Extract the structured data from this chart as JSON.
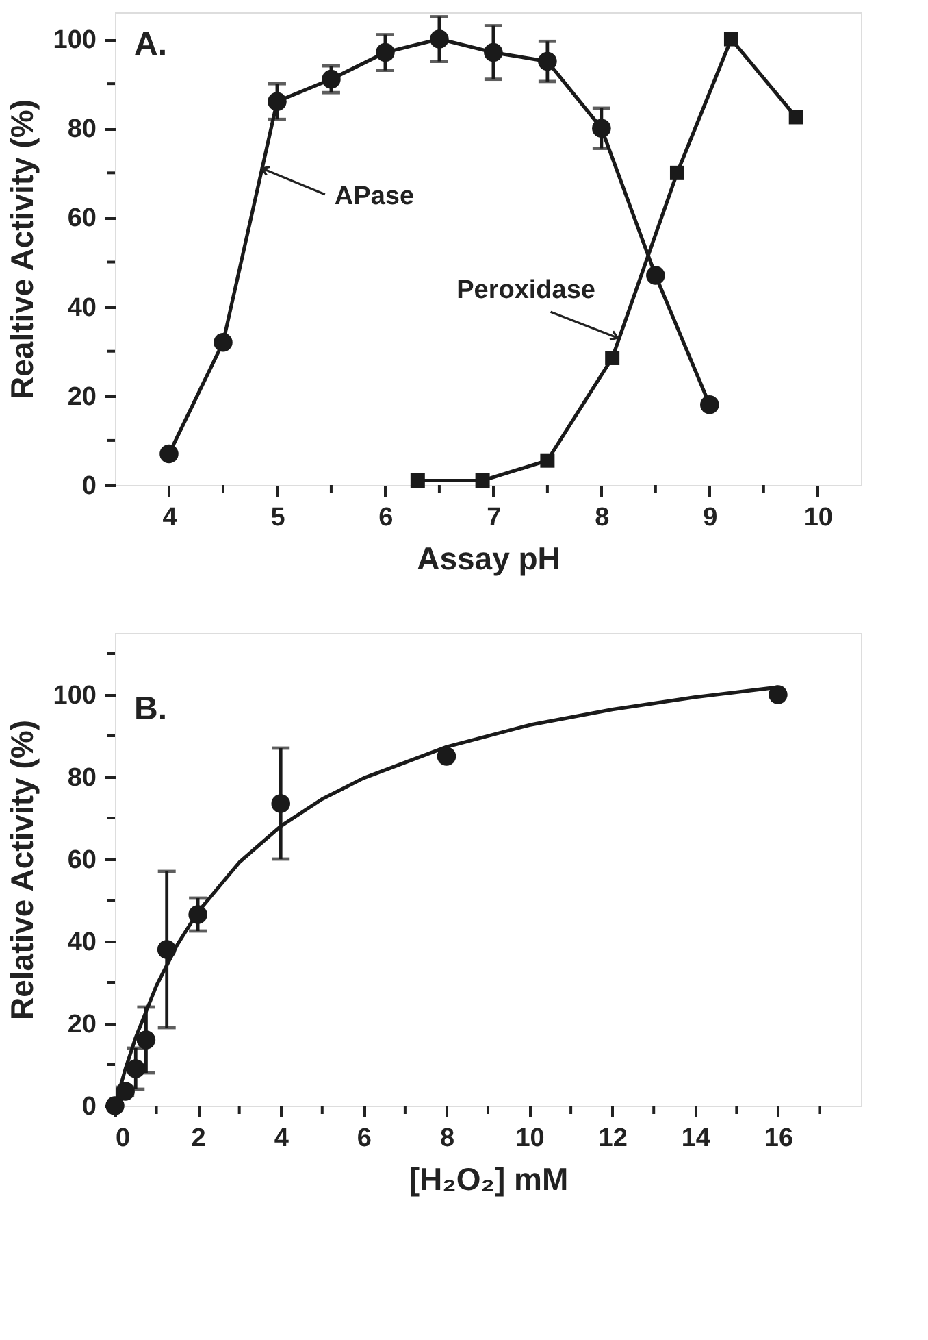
{
  "chart_data": [
    {
      "type": "line",
      "xlabel": "Assay pH",
      "ylabel": "Realtive Activity (%)",
      "xlim": [
        3.5,
        10.4
      ],
      "ylim": [
        0,
        106
      ],
      "xticks": [
        4,
        {
          "value": 4.5,
          "label": null
        },
        5,
        {
          "value": 5.5,
          "label": null
        },
        6,
        {
          "value": 6.5,
          "label": null
        },
        7,
        {
          "value": 7.5,
          "label": null
        },
        8,
        {
          "value": 8.5,
          "label": null
        },
        9,
        {
          "value": 9.5,
          "label": null
        },
        10
      ],
      "yticks": [
        0,
        {
          "value": 10,
          "label": null
        },
        20,
        {
          "value": 30,
          "label": null
        },
        40,
        {
          "value": 50,
          "label": null
        },
        60,
        {
          "value": 70,
          "label": null
        },
        80,
        {
          "value": 90,
          "label": null
        },
        100
      ],
      "series": [
        {
          "color": "#1a1a1a",
          "marker": "circle",
          "x": [
            4,
            4.5,
            5,
            5.5,
            6,
            6.5,
            7,
            7.5,
            8,
            8.5,
            9
          ],
          "values": [
            7,
            32,
            86,
            91,
            97,
            100,
            97,
            95,
            80,
            47,
            18
          ],
          "errors": [
            null,
            null,
            4,
            3,
            4,
            5,
            6,
            4.5,
            4.5,
            null,
            null
          ]
        },
        {
          "color": "#1a1a1a",
          "marker": "square",
          "x": [
            6.3,
            6.9,
            7.5,
            8.1,
            8.7,
            9.2,
            9.8
          ],
          "values": [
            1,
            1,
            5.5,
            28.5,
            70,
            100,
            82.5
          ]
        }
      ],
      "annotations": [
        "A.",
        {
          "text": "APase",
          "x": 4.86,
          "y": 71
        },
        {
          "text": "Peroxidase",
          "x": 8.15,
          "y": 33
        }
      ]
    },
    {
      "type": "scatter",
      "xlabel": "[H₂O₂] mM",
      "ylabel": "Relative Activity (%)",
      "xlim": [
        0,
        18
      ],
      "ylim": [
        0,
        115
      ],
      "xticks": [
        0,
        {
          "value": 1,
          "label": null
        },
        2,
        {
          "value": 3,
          "label": null
        },
        4,
        {
          "value": 5,
          "label": null
        },
        6,
        {
          "value": 7,
          "label": null
        },
        8,
        {
          "value": 9,
          "label": null
        },
        10,
        {
          "value": 11,
          "label": null
        },
        12,
        {
          "value": 13,
          "label": null
        },
        14,
        {
          "value": 15,
          "label": null
        },
        16,
        {
          "value": 17,
          "label": null
        }
      ],
      "yticks": [
        0,
        {
          "value": 10,
          "label": null
        },
        20,
        {
          "value": 30,
          "label": null
        },
        40,
        {
          "value": 50,
          "label": null
        },
        60,
        {
          "value": 70,
          "label": null
        },
        80,
        {
          "value": 90,
          "label": null
        },
        100,
        {
          "value": 110,
          "label": null
        }
      ],
      "series": [
        {
          "type": "line",
          "color": "#1a1a1a",
          "marker": "none",
          "x": [
            0,
            0.25,
            0.5,
            1,
            1.5,
            2,
            3,
            4,
            5,
            6,
            8,
            10,
            12,
            14,
            16
          ],
          "values": [
            0,
            8.9,
            16.6,
            29.2,
            39.1,
            47.1,
            59.2,
            68.0,
            74.6,
            79.7,
            87.3,
            92.6,
            96.4,
            99.4,
            101.8
          ]
        },
        {
          "color": "#1a1a1a",
          "marker": "circle",
          "x": [
            0,
            0.25,
            0.5,
            0.75,
            1.25,
            2,
            4,
            8,
            16
          ],
          "values": [
            0,
            3.5,
            9,
            16,
            38,
            46.5,
            73.5,
            85,
            100
          ],
          "errors": [
            null,
            1,
            5,
            8,
            19,
            4,
            13.5,
            null,
            null
          ]
        }
      ],
      "annotations": [
        "B."
      ]
    }
  ]
}
